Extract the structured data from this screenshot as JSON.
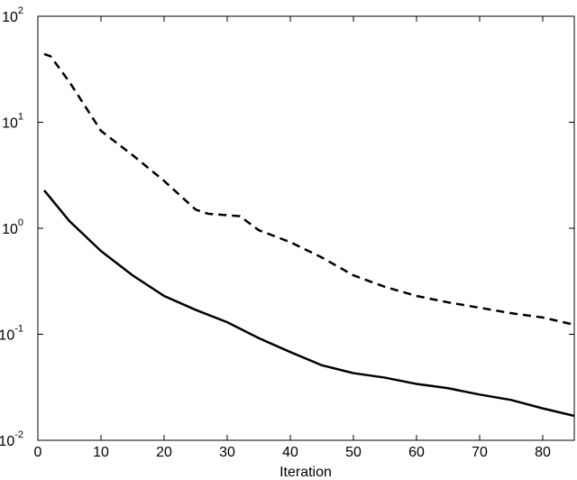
{
  "chart_data": {
    "type": "line",
    "x_label": "Iteration",
    "log_y": true,
    "xlim": [
      0,
      85
    ],
    "ylim": [
      0.01,
      100
    ],
    "xticks": [
      0,
      10,
      20,
      30,
      40,
      50,
      60,
      70,
      80
    ],
    "yticks": [
      {
        "value": 0.01,
        "label": "10",
        "exponent": "-2"
      },
      {
        "value": 0.1,
        "label": "10",
        "exponent": "-1"
      },
      {
        "value": 1,
        "label": "10",
        "exponent": "0"
      },
      {
        "value": 10,
        "label": "10",
        "exponent": "1"
      },
      {
        "value": 100,
        "label": "10",
        "exponent": "2"
      }
    ],
    "series": [
      {
        "color": "#000000",
        "dashed": true,
        "x": [
          1,
          2,
          5,
          10,
          15,
          20,
          25,
          27,
          32,
          35,
          40,
          45,
          50,
          55,
          60,
          65,
          70,
          75,
          80,
          85
        ],
        "values": [
          44,
          42,
          24,
          8.3,
          4.9,
          2.8,
          1.5,
          1.37,
          1.3,
          0.96,
          0.74,
          0.53,
          0.36,
          0.28,
          0.23,
          0.2,
          0.178,
          0.158,
          0.144,
          0.123
        ]
      },
      {
        "color": "#000000",
        "dashed": false,
        "x": [
          1,
          5,
          10,
          15,
          20,
          25,
          30,
          35,
          40,
          45,
          50,
          55,
          60,
          65,
          70,
          75,
          80,
          85
        ],
        "values": [
          2.28,
          1.17,
          0.61,
          0.36,
          0.23,
          0.17,
          0.13,
          0.092,
          0.068,
          0.051,
          0.043,
          0.039,
          0.034,
          0.031,
          0.027,
          0.024,
          0.02,
          0.017
        ]
      }
    ]
  }
}
